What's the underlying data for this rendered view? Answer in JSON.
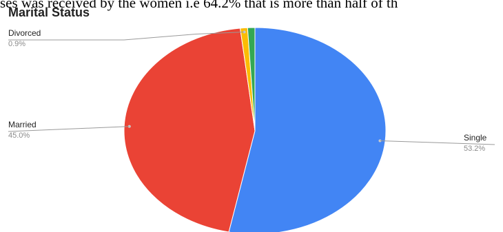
{
  "document": {
    "text_line": "ses was received by the women i.e 64.2% that is more than half of th"
  },
  "chart_data": {
    "type": "pie",
    "title": "Marital Status",
    "slices": [
      {
        "label": "Single",
        "value": 53.2,
        "value_label": "53.2%",
        "color": "#4285f4"
      },
      {
        "label": "Married",
        "value": 45.0,
        "value_label": "45.0%",
        "color": "#ea4335"
      },
      {
        "label": "Divorced",
        "value": 0.9,
        "value_label": "0.9%",
        "color": "#fbbc04"
      },
      {
        "label": "",
        "value": 0.9,
        "value_label": "",
        "color": "#34a853"
      }
    ],
    "legend": "none",
    "labels_position": "outside-with-leader-lines"
  }
}
